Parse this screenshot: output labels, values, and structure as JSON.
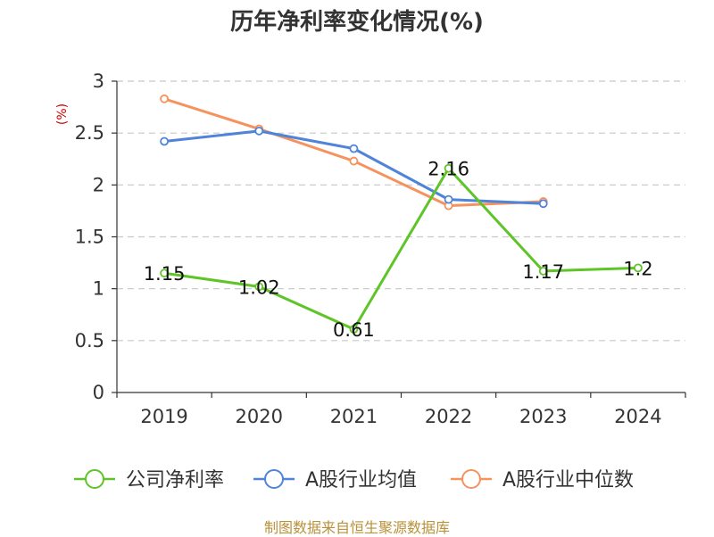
{
  "chart_data": {
    "type": "line",
    "title": "历年净利率变化情况(%)",
    "ylabel": "(%)",
    "xlabel": "",
    "categories": [
      "2019",
      "2020",
      "2021",
      "2022",
      "2023",
      "2024"
    ],
    "ylim": [
      0,
      3
    ],
    "yticks": [
      "0",
      "0.5",
      "1",
      "1.5",
      "2",
      "2.5",
      "3"
    ],
    "grid": true,
    "legend_position": "bottom",
    "series": [
      {
        "name": "公司净利率",
        "color": "#5ec428",
        "values": [
          1.15,
          1.02,
          0.61,
          2.16,
          1.17,
          1.2
        ],
        "labels": [
          "1.15",
          "1.02",
          "0.61",
          "2.16",
          "1.17",
          "1.2"
        ]
      },
      {
        "name": "A股行业均值",
        "color": "#4f84d9",
        "values": [
          2.42,
          2.52,
          2.35,
          1.86,
          1.82,
          null
        ]
      },
      {
        "name": "A股行业中位数",
        "color": "#f5925e",
        "values": [
          2.83,
          2.54,
          2.23,
          1.8,
          1.84,
          null
        ]
      }
    ]
  },
  "source": "制图数据来自恒生聚源数据库"
}
